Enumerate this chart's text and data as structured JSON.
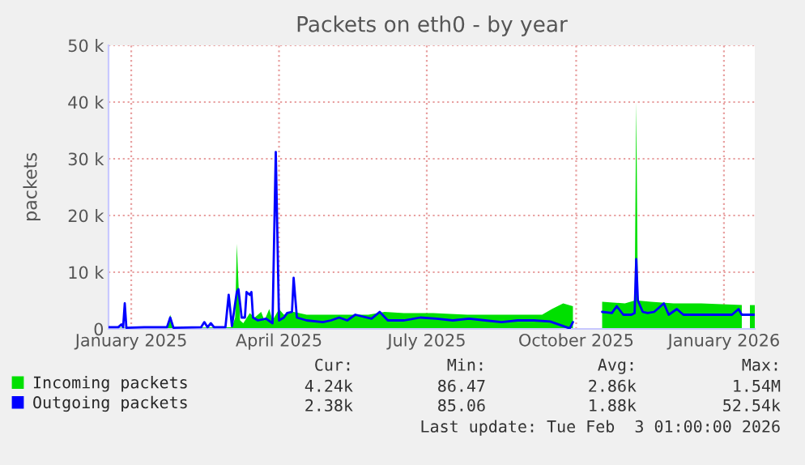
{
  "chart_data": {
    "type": "area",
    "title": "Packets on eth0 - by year",
    "ylabel": "packets",
    "xlim": [
      "2025-01-01",
      "2026-02-03"
    ],
    "xticks": [
      {
        "value": "2025-01-15",
        "label": "January 2025"
      },
      {
        "value": "2025-04-16",
        "label": "April 2025"
      },
      {
        "value": "2025-07-16",
        "label": "July 2025"
      },
      {
        "value": "2025-10-16",
        "label": "October 2025"
      },
      {
        "value": "2026-01-15",
        "label": "January 2026"
      }
    ],
    "ylim": [
      0,
      50000
    ],
    "yticks": [
      {
        "value": 0,
        "label": "0"
      },
      {
        "value": 10000,
        "label": "10 k"
      },
      {
        "value": 20000,
        "label": "20 k"
      },
      {
        "value": 30000,
        "label": "30 k"
      },
      {
        "value": 40000,
        "label": "40 k"
      },
      {
        "value": 50000,
        "label": "50 k"
      }
    ],
    "grid": true,
    "legend": "bottom",
    "series": [
      {
        "name": "Incoming packets",
        "color": "#00e000",
        "x": [
          "2025-01-01",
          "2025-02-06",
          "2025-02-08",
          "2025-02-10",
          "2025-03-18",
          "2025-03-20",
          "2025-03-21",
          "2025-03-23",
          "2025-03-25",
          "2025-03-29",
          "2025-04-01",
          "2025-04-05",
          "2025-04-07",
          "2025-04-10",
          "2025-04-12",
          "2025-04-14",
          "2025-04-16",
          "2025-04-19",
          "2025-04-25",
          "2025-05-03",
          "2025-05-20",
          "2025-06-10",
          "2025-06-20",
          "2025-07-02",
          "2025-07-20",
          "2025-08-10",
          "2025-09-01",
          "2025-09-25",
          "2025-10-01",
          "2025-10-08",
          "2025-10-14",
          "2025-10-17",
          "2025-11-01",
          "2025-11-15",
          "2025-11-21",
          "2025-11-22",
          "2025-11-23",
          "2025-12-01",
          "2025-12-15",
          "2026-01-01",
          "2026-01-26",
          "2026-01-28",
          "2026-01-31",
          "2026-02-03"
        ],
        "values": [
          200,
          200,
          2500,
          200,
          300,
          2000,
          15000,
          1500,
          1000,
          2800,
          2000,
          3000,
          1500,
          3500,
          1500,
          2500,
          3500,
          2500,
          3000,
          2500,
          2500,
          2500,
          3000,
          2800,
          2800,
          2500,
          2500,
          2500,
          3500,
          4500,
          4000,
          null,
          4800,
          4500,
          5000,
          40000,
          5000,
          4800,
          4500,
          4500,
          4200,
          null,
          4200,
          4200
        ]
      },
      {
        "name": "Outgoing packets",
        "type": "line",
        "color": "#0000ff",
        "x": [
          "2025-01-01",
          "2025-01-07",
          "2025-01-09",
          "2025-01-10",
          "2025-01-11",
          "2025-01-12",
          "2025-01-23",
          "2025-02-06",
          "2025-02-08",
          "2025-02-10",
          "2025-02-27",
          "2025-03-01",
          "2025-03-03",
          "2025-03-05",
          "2025-03-07",
          "2025-03-14",
          "2025-03-16",
          "2025-03-18",
          "2025-03-21",
          "2025-03-22",
          "2025-03-24",
          "2025-03-26",
          "2025-03-27",
          "2025-03-29",
          "2025-03-30",
          "2025-03-31",
          "2025-04-03",
          "2025-04-08",
          "2025-04-12",
          "2025-04-14",
          "2025-04-16",
          "2025-04-19",
          "2025-04-21",
          "2025-04-24",
          "2025-04-25",
          "2025-04-27",
          "2025-05-03",
          "2025-05-13",
          "2025-05-18",
          "2025-05-23",
          "2025-05-28",
          "2025-06-02",
          "2025-06-12",
          "2025-06-17",
          "2025-06-22",
          "2025-07-02",
          "2025-07-12",
          "2025-07-22",
          "2025-08-01",
          "2025-08-11",
          "2025-08-21",
          "2025-08-31",
          "2025-09-10",
          "2025-09-20",
          "2025-09-30",
          "2025-10-05",
          "2025-10-10",
          "2025-10-12",
          "2025-10-14",
          "2025-10-20",
          "2025-11-01",
          "2025-11-07",
          "2025-11-10",
          "2025-11-14",
          "2025-11-19",
          "2025-11-21",
          "2025-11-22",
          "2025-11-23",
          "2025-11-26",
          "2025-11-29",
          "2025-12-03",
          "2025-12-09",
          "2025-12-12",
          "2025-12-17",
          "2025-12-21",
          "2025-12-29",
          "2026-01-08",
          "2026-01-20",
          "2026-01-24",
          "2026-01-26",
          "2026-01-30",
          "2026-02-03"
        ],
        "values": [
          300,
          300,
          800,
          300,
          4500,
          200,
          300,
          300,
          2000,
          200,
          300,
          1200,
          300,
          1000,
          300,
          300,
          6000,
          500,
          6500,
          7000,
          2000,
          2000,
          6500,
          6000,
          6500,
          2000,
          1500,
          1800,
          1000,
          31200,
          1500,
          2000,
          2800,
          3000,
          9000,
          2000,
          1500,
          1200,
          1500,
          2000,
          1500,
          2500,
          1800,
          3000,
          1500,
          1500,
          2000,
          1800,
          1500,
          1800,
          1500,
          1200,
          1500,
          1500,
          1300,
          800,
          300,
          100,
          1200,
          null,
          3000,
          2800,
          4000,
          2500,
          2500,
          2800,
          12300,
          5000,
          3000,
          2800,
          3000,
          4500,
          2500,
          3500,
          2500,
          2500,
          2500,
          2500,
          3500,
          2500,
          2500,
          2500
        ]
      }
    ],
    "annotations": [
      "Cur:",
      "Min:",
      "Avg:",
      "Max:",
      "4.24k",
      "86.47",
      "2.86k",
      "1.54M",
      "2.38k",
      "85.06",
      "1.88k",
      "52.54k",
      "Last update: Tue Feb  3 01:00:00 2026"
    ]
  }
}
